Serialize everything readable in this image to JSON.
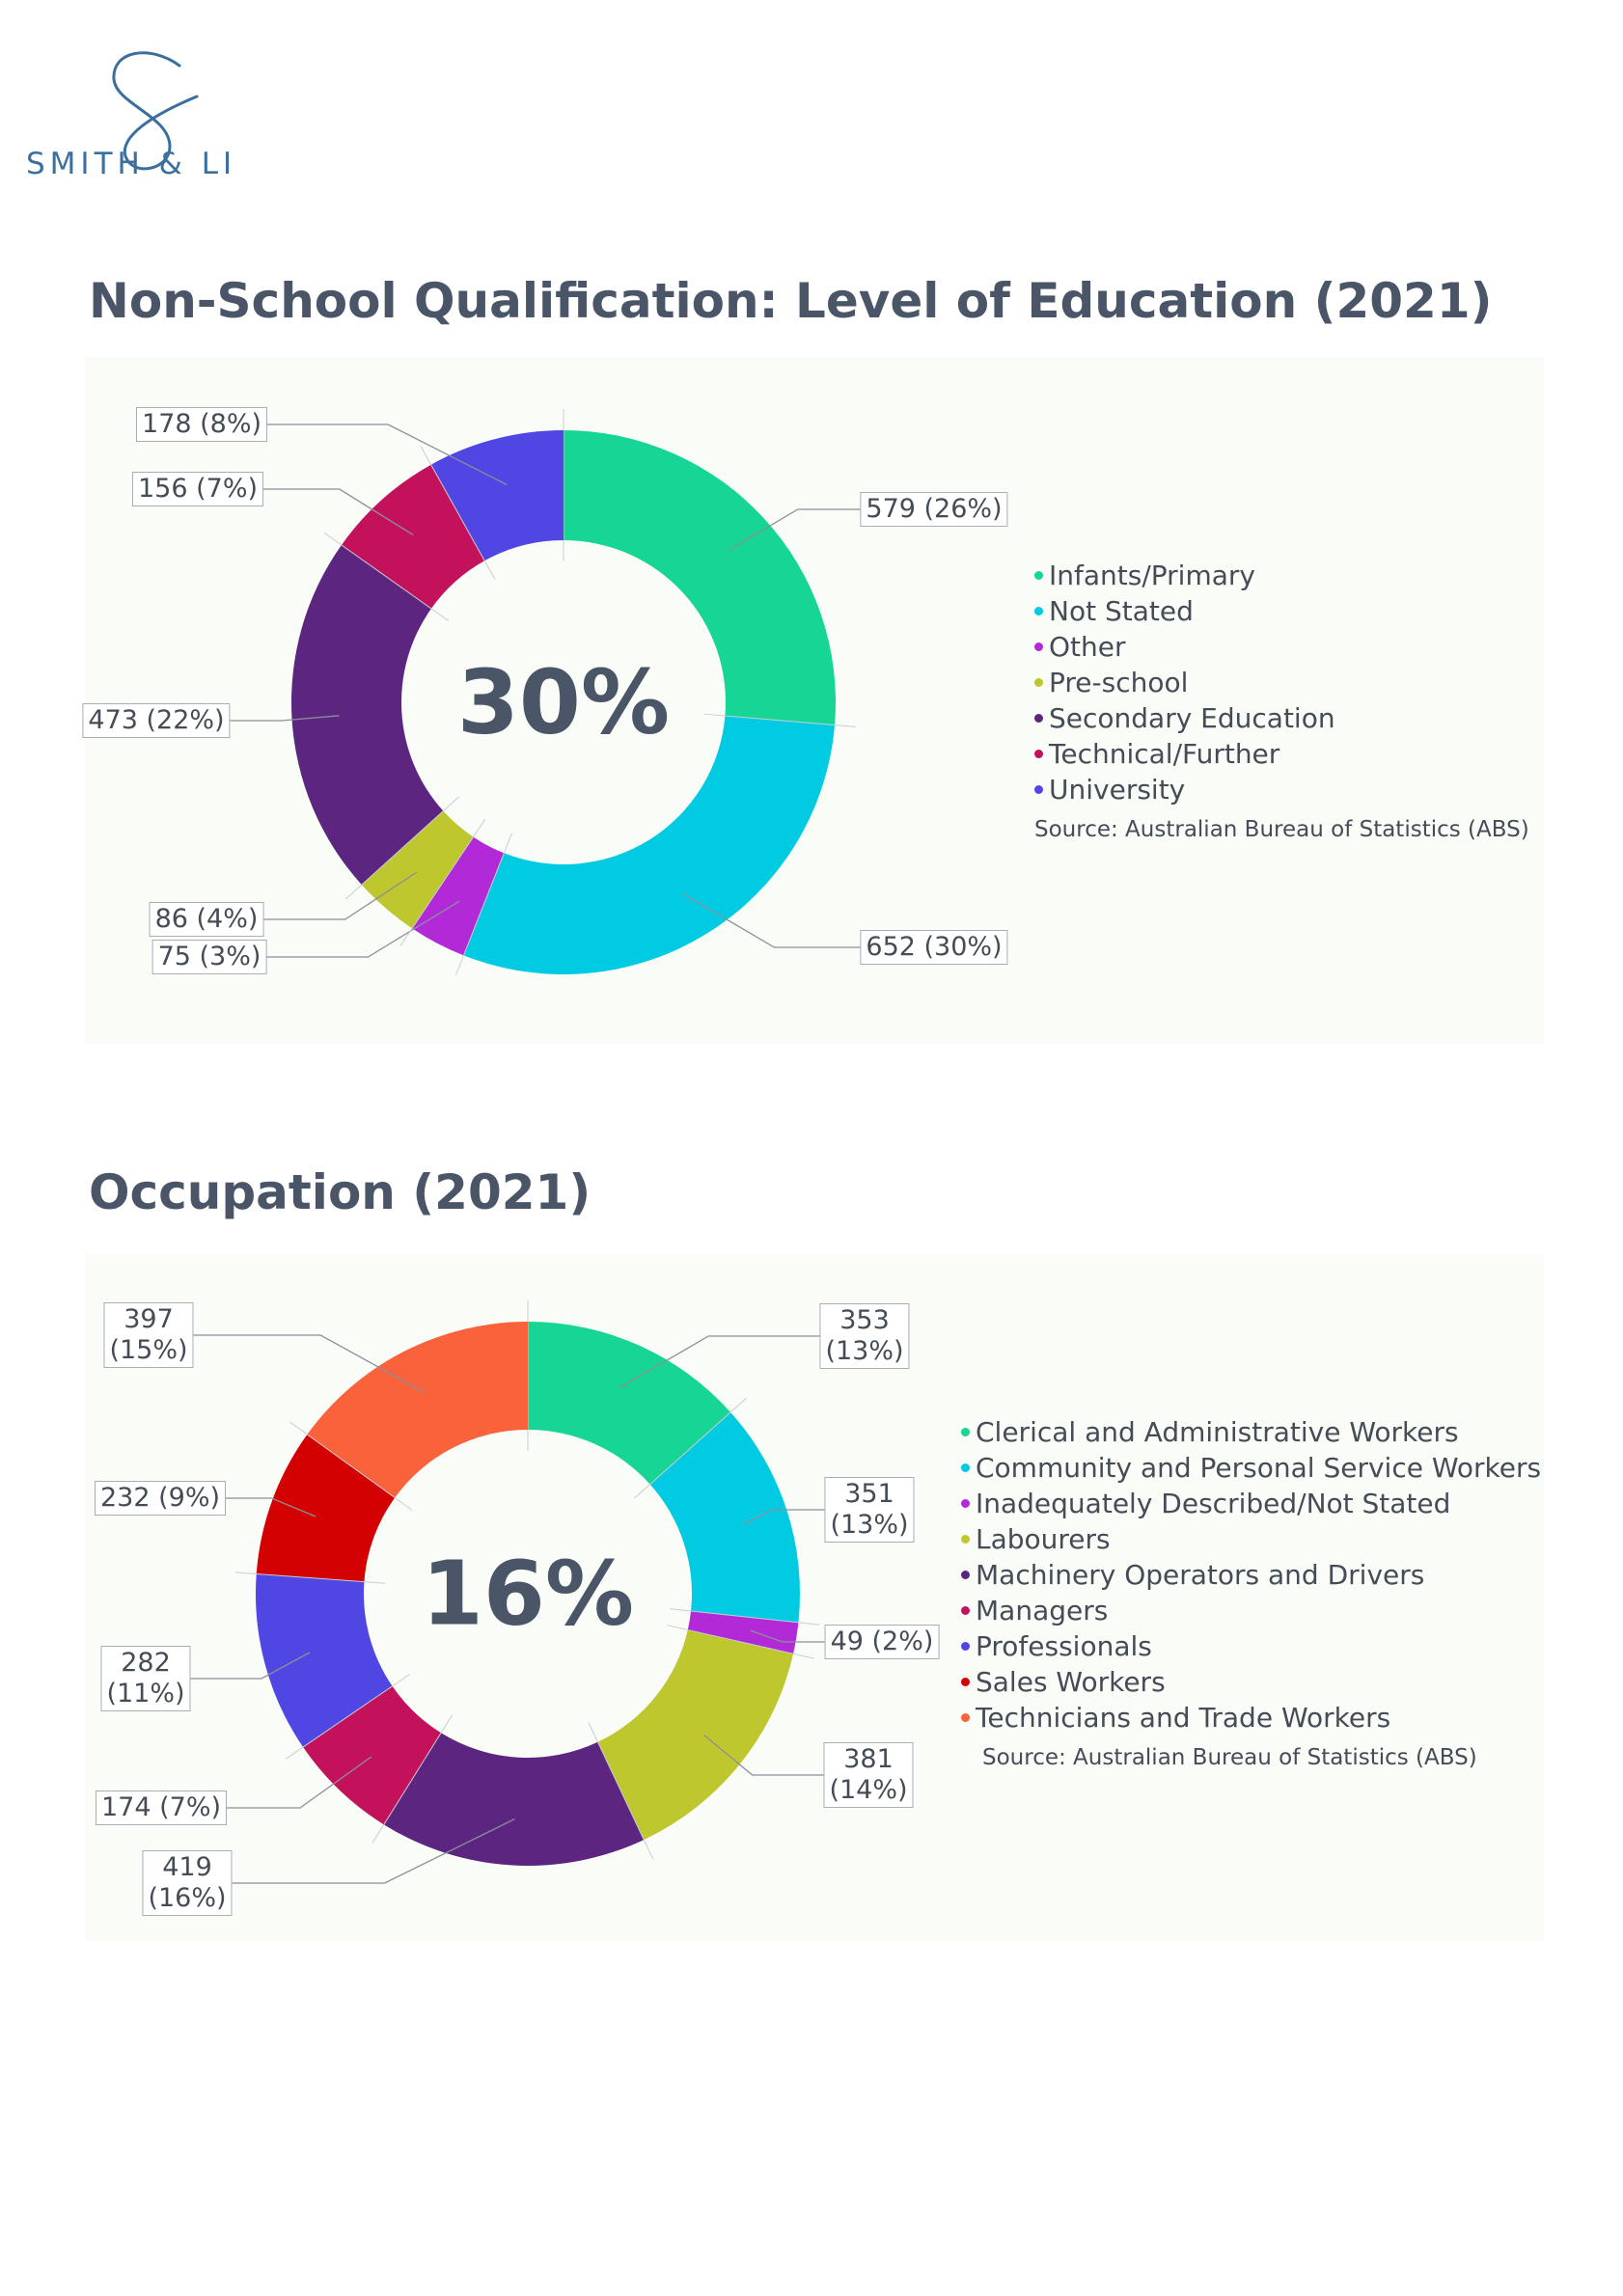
{
  "brand": {
    "name": "SMITH & LI",
    "logo_icon": "script-s-logo-icon",
    "color": "#3a6f9e"
  },
  "sections": [
    {
      "title": "Non-School Qualification: Level of Education (2021)"
    },
    {
      "title": "Occupation (2021)"
    }
  ],
  "chart_data": [
    {
      "type": "pie",
      "variant": "donut",
      "title": "Non-School Qualification: Level of Education (2021)",
      "center_label": "30%",
      "categories": [
        "Infants/Primary",
        "Not Stated",
        "Other",
        "Pre-school",
        "Secondary Education",
        "Technical/Further",
        "University"
      ],
      "slices": [
        {
          "label": "Infants/Primary",
          "value": 579,
          "percent": "26%",
          "display": "579 (26%)",
          "color": "#17d595"
        },
        {
          "label": "Not Stated",
          "value": 652,
          "percent": "30%",
          "display": "652 (30%)",
          "color": "#00cbe3"
        },
        {
          "label": "Other",
          "value": 75,
          "percent": "3%",
          "display": "75 (3%)",
          "color": "#b22ad8"
        },
        {
          "label": "Pre-school",
          "value": 86,
          "percent": "4%",
          "display": "86 (4%)",
          "color": "#bec72d"
        },
        {
          "label": "Secondary Education",
          "value": 473,
          "percent": "22%",
          "display": "473 (22%)",
          "color": "#5c2580"
        },
        {
          "label": "Technical/Further",
          "value": 156,
          "percent": "7%",
          "display": "156 (7%)",
          "color": "#c4115b"
        },
        {
          "label": "University",
          "value": 178,
          "percent": "8%",
          "display": "178 (8%)",
          "color": "#5046e4"
        }
      ],
      "legend_position": "right",
      "source": "Source: Australian Bureau of Statistics (ABS)"
    },
    {
      "type": "pie",
      "variant": "donut",
      "title": "Occupation (2021)",
      "center_label": "16%",
      "categories": [
        "Clerical and Administrative Workers",
        "Community and Personal Service Workers",
        "Inadequately Described/Not Stated",
        "Labourers",
        "Machinery Operators and Drivers",
        "Managers",
        "Professionals",
        "Sales Workers",
        "Technicians and Trade Workers"
      ],
      "slices": [
        {
          "label": "Clerical and Administrative Workers",
          "value": 353,
          "percent": "13%",
          "display": "353\n(13%)",
          "color": "#17d595"
        },
        {
          "label": "Community and Personal Service Workers",
          "value": 351,
          "percent": "13%",
          "display": "351\n(13%)",
          "color": "#00cbe3"
        },
        {
          "label": "Inadequately Described/Not Stated",
          "value": 49,
          "percent": "2%",
          "display": "49 (2%)",
          "color": "#b22ad8"
        },
        {
          "label": "Labourers",
          "value": 381,
          "percent": "14%",
          "display": "381\n(14%)",
          "color": "#bec72d"
        },
        {
          "label": "Machinery Operators and Drivers",
          "value": 419,
          "percent": "16%",
          "display": "419\n(16%)",
          "color": "#5c2580"
        },
        {
          "label": "Managers",
          "value": 174,
          "percent": "7%",
          "display": "174 (7%)",
          "color": "#c4115b"
        },
        {
          "label": "Professionals",
          "value": 282,
          "percent": "11%",
          "display": "282\n(11%)",
          "color": "#5046e4"
        },
        {
          "label": "Sales Workers",
          "value": 232,
          "percent": "9%",
          "display": "232 (9%)",
          "color": "#d30101"
        },
        {
          "label": "Technicians and Trade Workers",
          "value": 397,
          "percent": "15%",
          "display": "397\n(15%)",
          "color": "#fa623c"
        }
      ],
      "legend_position": "right",
      "source": "Source: Australian Bureau of Statistics (ABS)"
    }
  ]
}
